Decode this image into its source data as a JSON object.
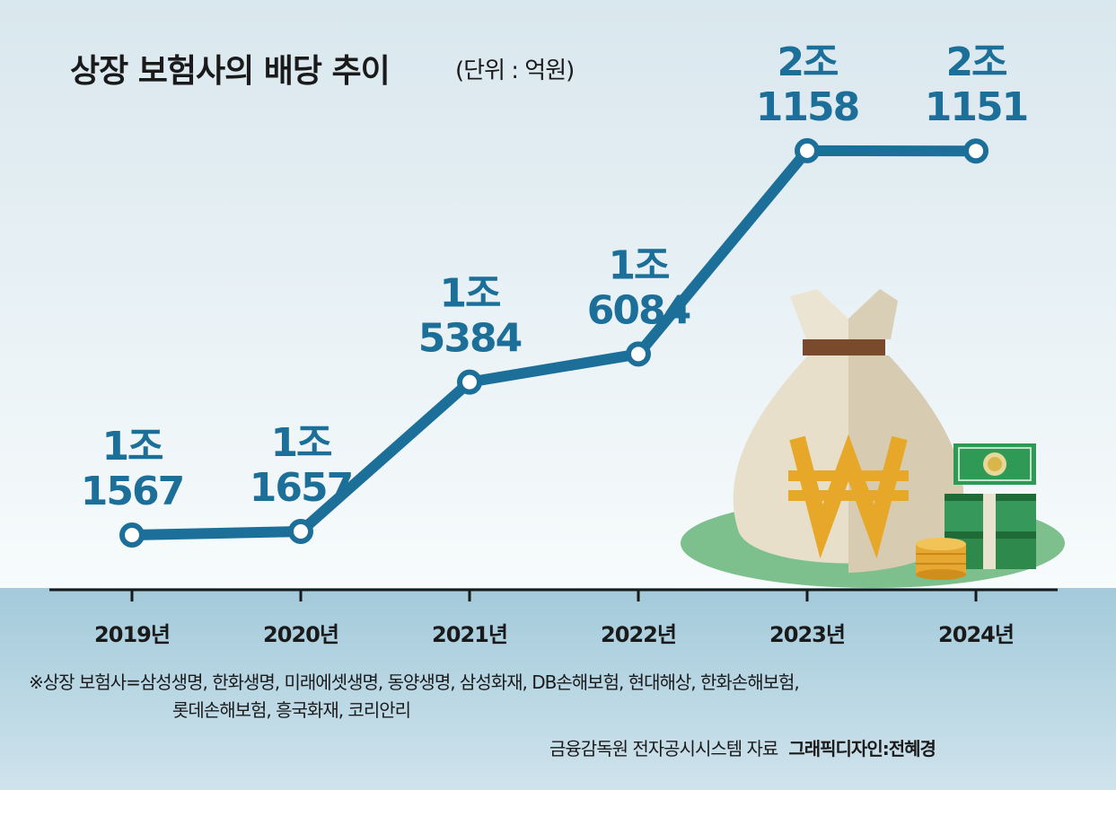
{
  "title": "상장 보험사의 배당 추이",
  "unit": "(단위 : 억원)",
  "chart_data": {
    "type": "line",
    "x": [
      "2019년",
      "2020년",
      "2021년",
      "2022년",
      "2023년",
      "2024년"
    ],
    "values": [
      11567,
      11657,
      15384,
      16084,
      21158,
      21151
    ],
    "data_labels": [
      [
        "1조",
        "1567"
      ],
      [
        "1조",
        "1657"
      ],
      [
        "1조",
        "5384"
      ],
      [
        "1조",
        "6084"
      ],
      [
        "2조",
        "1158"
      ],
      [
        "2조",
        "1151"
      ]
    ],
    "grid": false,
    "legend": "none"
  },
  "colors": {
    "line": "#1c6f99",
    "label": "#1c6f99",
    "band": "#a8cddd",
    "sky_top": "#dde9ef",
    "bag": "#e6dcc6",
    "won": "#e7a82a",
    "grass": "#79bf8a",
    "money": "#2f8f4f"
  },
  "illustration_icons": [
    "money-bag-icon",
    "won-sign-icon",
    "banknote-stack-icon",
    "coin-stack-icon"
  ],
  "footnote": {
    "line1": "※상장 보험사=삼성생명, 한화생명, 미래에셋생명, 동양생명, 삼성화재, DB손해보험, 현대해상, 한화손해보험,",
    "line2": "롯데손해보험, 흥국화재, 코리안리"
  },
  "source": "금융감독원 전자공시시스템 자료",
  "credit": "그래픽디자인:전혜경"
}
